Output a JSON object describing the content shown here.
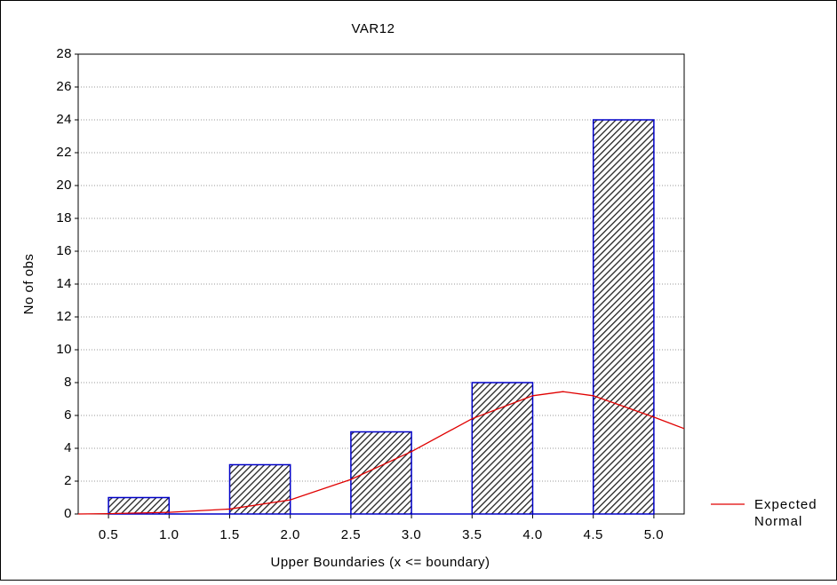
{
  "chart_data": {
    "type": "histogram",
    "title": "VAR12",
    "xlabel": "Upper Boundaries (x <= boundary)",
    "ylabel": "No of obs",
    "bins": [
      0.5,
      1,
      1.5,
      2,
      2.5,
      3,
      3.5,
      4,
      4.5,
      5
    ],
    "values": [
      1,
      0,
      3,
      0,
      5,
      0,
      8,
      0,
      24
    ],
    "color": "#0000c8",
    "xlim": [
      0.25,
      5.25
    ],
    "xticks": [
      0.5,
      {
        "value": 1,
        "label": "1.0"
      },
      1.5,
      {
        "value": 2,
        "label": "2.0"
      },
      2.5,
      {
        "value": 3,
        "label": "3.0"
      },
      3.5,
      {
        "value": 4,
        "label": "4.0"
      },
      4.5,
      {
        "value": 5,
        "label": "5.0"
      }
    ],
    "ylim": [
      0,
      28
    ],
    "yticks": [
      0,
      2,
      4,
      6,
      8,
      10,
      12,
      14,
      16,
      18,
      20,
      22,
      24,
      26,
      28
    ],
    "grid": true,
    "series": [
      {
        "name": "Expected Normal",
        "color": "#e00000",
        "x": [
          0.25,
          0.5,
          1,
          1.5,
          2,
          2.5,
          3,
          3.5,
          4,
          4.25,
          4.5,
          5,
          5.25
        ],
        "values": [
          0,
          0.02,
          0.1,
          0.3,
          0.86,
          2.1,
          3.8,
          5.8,
          7.2,
          7.45,
          7.2,
          5.9,
          5.2
        ]
      }
    ]
  }
}
